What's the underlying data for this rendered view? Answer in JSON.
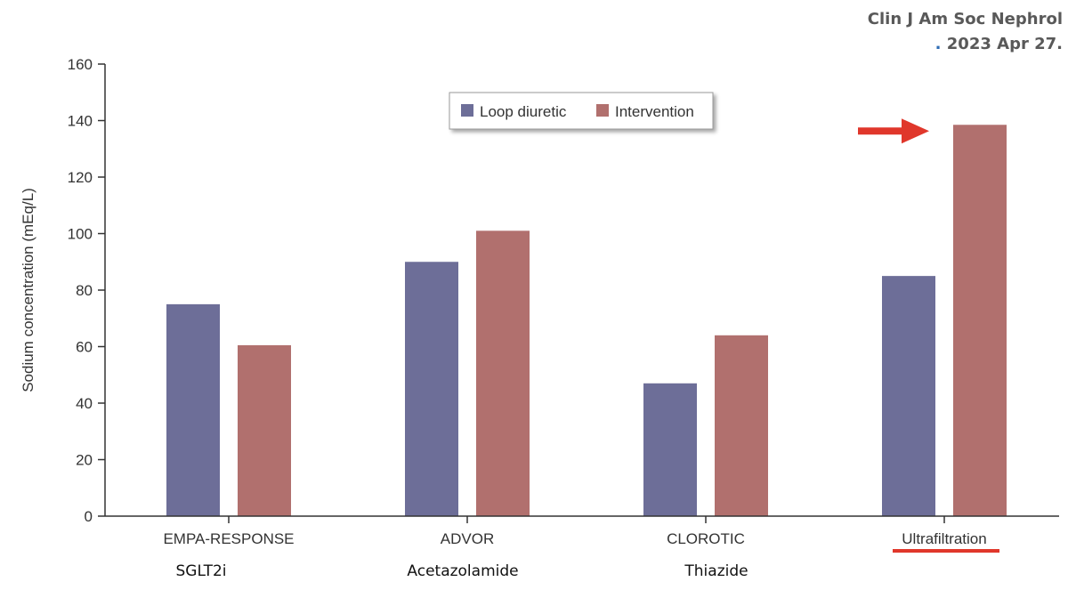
{
  "citation": {
    "line1": "Clin J Am Soc Nephrol",
    "line2_dot": ".",
    "line2": " 2023 Apr 27."
  },
  "chart_data": {
    "type": "bar",
    "categories": [
      "EMPA-RESPONSE",
      "ADVOR",
      "CLOROTIC",
      "Ultrafiltration"
    ],
    "subcategories": [
      "SGLT2i",
      "Acetazolamide",
      "Thiazide",
      ""
    ],
    "series": [
      {
        "name": "Loop diuretic",
        "values": [
          75,
          90,
          47,
          85
        ],
        "color": "#6d6e98"
      },
      {
        "name": "Intervention",
        "values": [
          60.5,
          101,
          64,
          138.5
        ],
        "color": "#b1706e"
      }
    ],
    "ylabel": "Sodium concentration (mEq/L)",
    "xlabel": "",
    "ylim": [
      0,
      160
    ],
    "yticks": [
      0,
      20,
      40,
      60,
      80,
      100,
      120,
      140,
      160
    ],
    "grid": false,
    "legend": "top-center",
    "highlighted_category": "Ultrafiltration",
    "highlight_color": "#e0372b"
  }
}
